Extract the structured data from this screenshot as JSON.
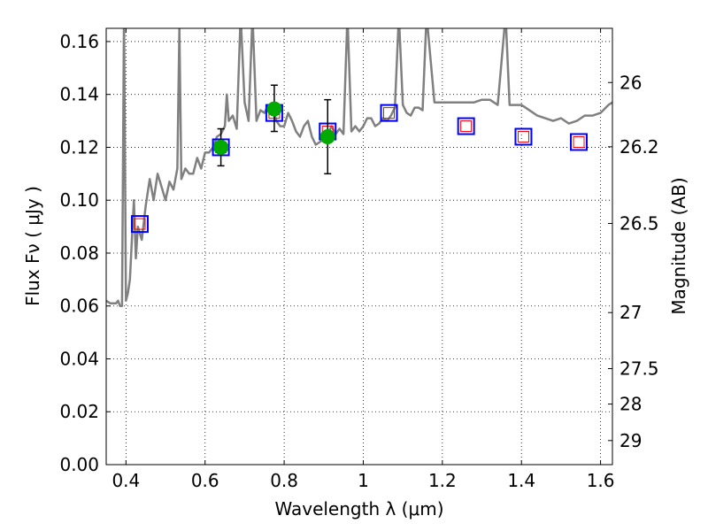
{
  "chart_data": {
    "type": "line",
    "xlabel": "Wavelength  λ (μm)",
    "ylabel": "Flux  Fν  ( μJy )",
    "y2label": "Magnitude (AB)",
    "xlim": [
      0.35,
      1.63
    ],
    "ylim": [
      0.0,
      0.165
    ],
    "grid": true,
    "x_ticks": [
      0.4,
      0.6,
      0.8,
      1.0,
      1.2,
      1.4,
      1.6
    ],
    "x_tick_labels": [
      "0.4",
      "0.6",
      "0.8",
      "1",
      "1.2",
      "1.4",
      "1.6"
    ],
    "y_ticks": [
      0.0,
      0.02,
      0.04,
      0.06,
      0.08,
      0.1,
      0.12,
      0.14,
      0.16
    ],
    "y_tick_labels": [
      "0.00",
      "0.02",
      "0.04",
      "0.06",
      "0.08",
      "0.10",
      "0.12",
      "0.14",
      "0.16"
    ],
    "y2_ticks": [
      {
        "label": "26",
        "flux": 0.1445
      },
      {
        "label": "26.2",
        "flux": 0.1202
      },
      {
        "label": "26.5",
        "flux": 0.0912
      },
      {
        "label": "27",
        "flux": 0.0575
      },
      {
        "label": "27.5",
        "flux": 0.0363
      },
      {
        "label": "28",
        "flux": 0.0229
      },
      {
        "label": "29",
        "flux": 0.0091
      }
    ],
    "series": [
      {
        "kind": "spectrum",
        "color": "#808080",
        "x": [
          0.35,
          0.36,
          0.37,
          0.375,
          0.38,
          0.385,
          0.39,
          0.395,
          0.4,
          0.405,
          0.41,
          0.415,
          0.42,
          0.425,
          0.43,
          0.44,
          0.45,
          0.46,
          0.47,
          0.48,
          0.49,
          0.5,
          0.51,
          0.52,
          0.53,
          0.535,
          0.54,
          0.55,
          0.56,
          0.57,
          0.58,
          0.59,
          0.6,
          0.61,
          0.62,
          0.63,
          0.64,
          0.65,
          0.655,
          0.66,
          0.67,
          0.68,
          0.69,
          0.7,
          0.71,
          0.72,
          0.73,
          0.74,
          0.75,
          0.76,
          0.77,
          0.78,
          0.79,
          0.8,
          0.81,
          0.82,
          0.83,
          0.84,
          0.85,
          0.86,
          0.87,
          0.88,
          0.89,
          0.9,
          0.91,
          0.92,
          0.93,
          0.94,
          0.95,
          0.96,
          0.97,
          0.98,
          0.99,
          1.0,
          1.01,
          1.02,
          1.03,
          1.04,
          1.05,
          1.06,
          1.07,
          1.08,
          1.09,
          1.1,
          1.11,
          1.12,
          1.13,
          1.14,
          1.15,
          1.16,
          1.18,
          1.2,
          1.22,
          1.24,
          1.26,
          1.28,
          1.3,
          1.32,
          1.34,
          1.36,
          1.37,
          1.38,
          1.4,
          1.42,
          1.44,
          1.46,
          1.48,
          1.5,
          1.52,
          1.54,
          1.56,
          1.58,
          1.6,
          1.62,
          1.63
        ],
        "y": [
          0.062,
          0.061,
          0.061,
          0.061,
          0.062,
          0.06,
          0.06,
          0.17,
          0.062,
          0.065,
          0.07,
          0.085,
          0.1,
          0.078,
          0.09,
          0.085,
          0.098,
          0.108,
          0.1,
          0.11,
          0.105,
          0.1,
          0.107,
          0.104,
          0.112,
          0.165,
          0.108,
          0.112,
          0.11,
          0.11,
          0.116,
          0.112,
          0.118,
          0.118,
          0.12,
          0.124,
          0.125,
          0.128,
          0.14,
          0.13,
          0.132,
          0.127,
          0.17,
          0.137,
          0.13,
          0.17,
          0.13,
          0.134,
          0.133,
          0.136,
          0.136,
          0.13,
          0.128,
          0.128,
          0.133,
          0.13,
          0.126,
          0.124,
          0.128,
          0.13,
          0.124,
          0.121,
          0.122,
          0.123,
          0.125,
          0.128,
          0.125,
          0.127,
          0.125,
          0.17,
          0.126,
          0.128,
          0.126,
          0.128,
          0.131,
          0.131,
          0.128,
          0.129,
          0.131,
          0.13,
          0.132,
          0.135,
          0.17,
          0.136,
          0.133,
          0.132,
          0.135,
          0.135,
          0.134,
          0.17,
          0.137,
          0.137,
          0.137,
          0.137,
          0.137,
          0.137,
          0.138,
          0.138,
          0.136,
          0.17,
          0.136,
          0.136,
          0.136,
          0.134,
          0.132,
          0.131,
          0.13,
          0.131,
          0.129,
          0.13,
          0.132,
          0.132,
          0.133,
          0.136,
          0.137
        ]
      },
      {
        "kind": "model_photometry",
        "marker": "square",
        "color": "#0000ff",
        "x": [
          0.435,
          0.64,
          0.775,
          0.91,
          1.065,
          1.26,
          1.405,
          1.545
        ],
        "y": [
          0.091,
          0.12,
          0.133,
          0.126,
          0.133,
          0.128,
          0.124,
          0.122
        ]
      },
      {
        "kind": "model_photometry_inner",
        "marker": "square",
        "color": "#ff0000",
        "x": [
          0.435,
          0.64,
          0.775,
          0.91,
          1.065,
          1.26,
          1.405,
          1.545
        ],
        "y": [
          0.091,
          0.12,
          0.133,
          0.126,
          0.133,
          0.128,
          0.124,
          0.122
        ]
      },
      {
        "kind": "observed",
        "marker": "circle",
        "color": "#00aa00",
        "x": [
          0.64,
          0.775,
          0.91
        ],
        "y": [
          0.12,
          0.1345,
          0.124
        ],
        "yerr_low": [
          0.113,
          0.126,
          0.11
        ],
        "yerr_high": [
          0.127,
          0.1435,
          0.138
        ]
      }
    ]
  }
}
